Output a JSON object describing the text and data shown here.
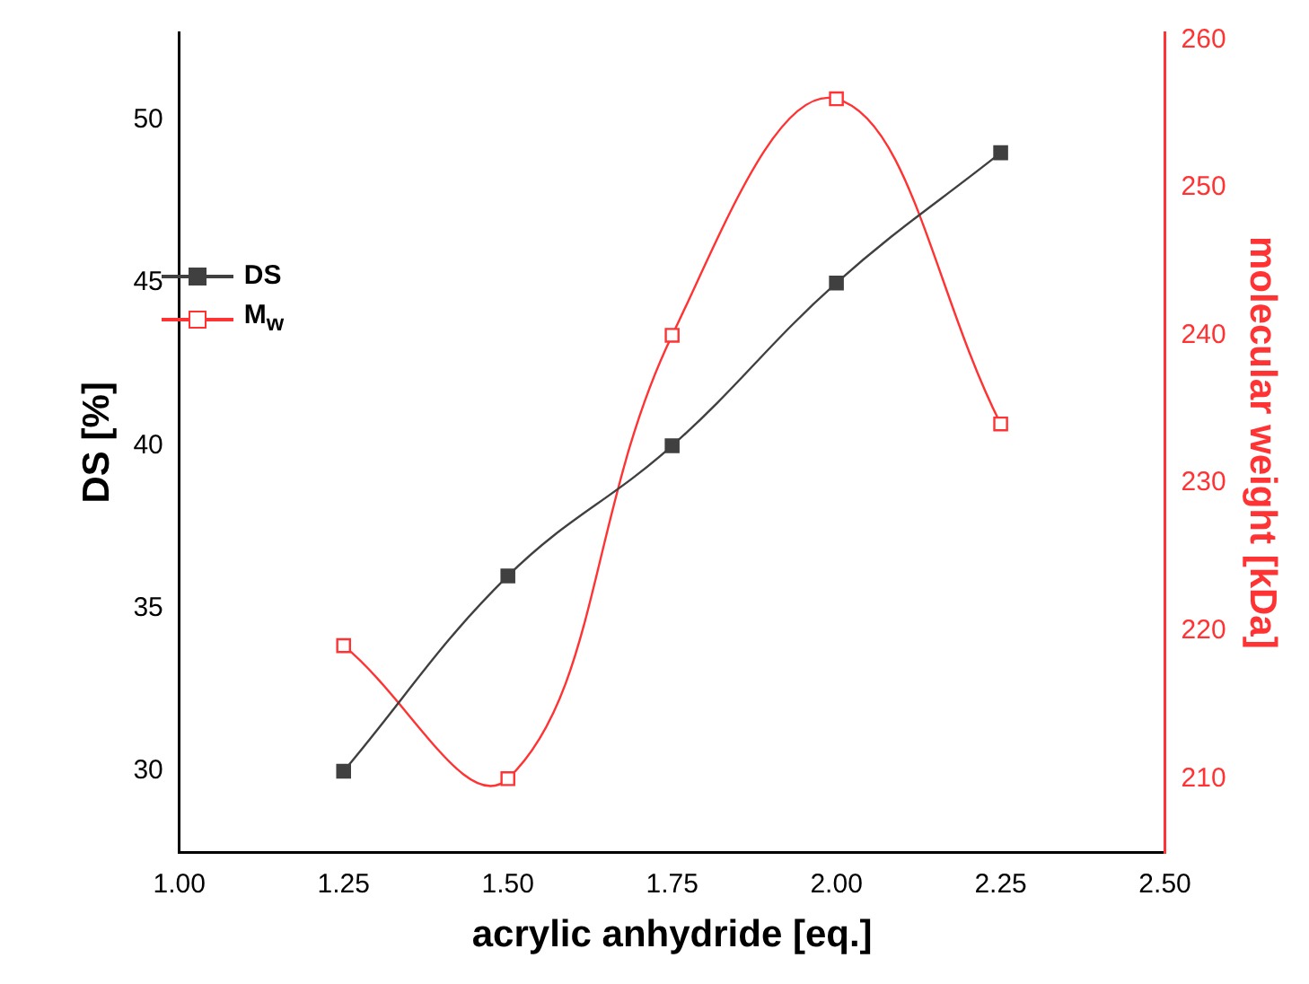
{
  "chart_data": {
    "type": "line",
    "xlabel": "acrylic anhydride [eq.]",
    "ylabel": "DS [%]",
    "y2label": "molecular weight [kDa]",
    "x": [
      1.25,
      1.5,
      1.75,
      2.0,
      2.25
    ],
    "xlim": [
      1.0,
      2.5
    ],
    "xticks": [
      {
        "value": 1.0,
        "label": "1.00"
      },
      {
        "value": 1.25,
        "label": "1.25"
      },
      {
        "value": 1.5,
        "label": "1.50"
      },
      {
        "value": 1.75,
        "label": "1.75"
      },
      {
        "value": 2.0,
        "label": "2.00"
      },
      {
        "value": 2.25,
        "label": "2.25"
      },
      {
        "value": 2.5,
        "label": "2.50"
      }
    ],
    "ylim": [
      27.5,
      52.7
    ],
    "yticks": [
      30,
      35,
      40,
      45,
      50
    ],
    "y2lim": [
      205,
      260.5
    ],
    "y2ticks": [
      210,
      220,
      230,
      240,
      250,
      260
    ],
    "series": [
      {
        "name": "DS",
        "color": "#404040",
        "values": [
          30,
          36,
          40,
          45,
          49
        ]
      },
      {
        "name": "M$_{w}$",
        "color": "#ff3333",
        "axis": "y2",
        "values": [
          219,
          210,
          240,
          256,
          234
        ]
      }
    ],
    "marker": "square",
    "grid": false,
    "legend": "top left"
  }
}
